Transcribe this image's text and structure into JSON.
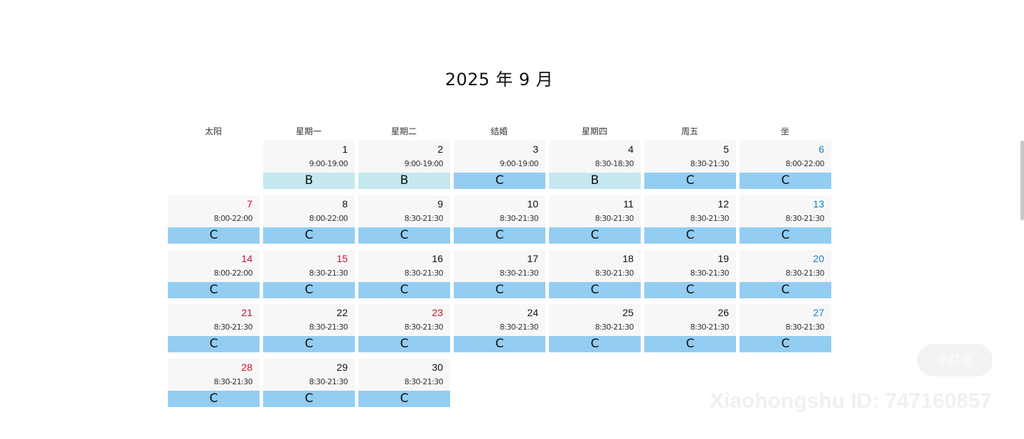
{
  "title": "2025 年 9 月",
  "weekdays": [
    "太阳",
    "星期一",
    "星期二",
    "结婚",
    "星期四",
    "周五",
    "坐"
  ],
  "days": [
    {
      "day": "1",
      "hours": "9:00-19:00",
      "level": "B"
    },
    {
      "day": "2",
      "hours": "9:00-19:00",
      "level": "B"
    },
    {
      "day": "3",
      "hours": "9:00-19:00",
      "level": "C"
    },
    {
      "day": "4",
      "hours": "8:30-18:30",
      "level": "B"
    },
    {
      "day": "5",
      "hours": "8:30-21:30",
      "level": "C"
    },
    {
      "day": "6",
      "hours": "8:00-22:00",
      "level": "C"
    },
    {
      "day": "7",
      "hours": "8:00-22:00",
      "level": "C"
    },
    {
      "day": "8",
      "hours": "8:00-22:00",
      "level": "C"
    },
    {
      "day": "9",
      "hours": "8:30-21:30",
      "level": "C"
    },
    {
      "day": "10",
      "hours": "8:30-21:30",
      "level": "C"
    },
    {
      "day": "11",
      "hours": "8:30-21:30",
      "level": "C"
    },
    {
      "day": "12",
      "hours": "8:30-21:30",
      "level": "C"
    },
    {
      "day": "13",
      "hours": "8:30-21:30",
      "level": "C"
    },
    {
      "day": "14",
      "hours": "8:00-22:00",
      "level": "C"
    },
    {
      "day": "15",
      "hours": "8:30-21:30",
      "level": "C",
      "holiday": true
    },
    {
      "day": "16",
      "hours": "8:30-21:30",
      "level": "C"
    },
    {
      "day": "17",
      "hours": "8:30-21:30",
      "level": "C"
    },
    {
      "day": "18",
      "hours": "8:30-21:30",
      "level": "C"
    },
    {
      "day": "19",
      "hours": "8:30-21:30",
      "level": "C"
    },
    {
      "day": "20",
      "hours": "8:30-21:30",
      "level": "C"
    },
    {
      "day": "21",
      "hours": "8:30-21:30",
      "level": "C"
    },
    {
      "day": "22",
      "hours": "8:30-21:30",
      "level": "C"
    },
    {
      "day": "23",
      "hours": "8:30-21:30",
      "level": "C",
      "holiday": true
    },
    {
      "day": "24",
      "hours": "8:30-21:30",
      "level": "C"
    },
    {
      "day": "25",
      "hours": "8:30-21:30",
      "level": "C"
    },
    {
      "day": "26",
      "hours": "8:30-21:30",
      "level": "C"
    },
    {
      "day": "27",
      "hours": "8:30-21:30",
      "level": "C"
    },
    {
      "day": "28",
      "hours": "8:30-21:30",
      "level": "C"
    },
    {
      "day": "29",
      "hours": "8:30-21:30",
      "level": "C"
    },
    {
      "day": "30",
      "hours": "8:30-21:30",
      "level": "C"
    }
  ],
  "colors": {
    "sunday_text": "#c8102e",
    "holiday_text": "#c8102e",
    "saturday_text": "#1a7fc0",
    "level_C": "#93cdf2",
    "level_B": "#c4e8ef",
    "cell_bg": "#f7f7f7"
  },
  "watermark": "Xiaohongshu ID: 747160857",
  "watermark_logo": "小红书"
}
